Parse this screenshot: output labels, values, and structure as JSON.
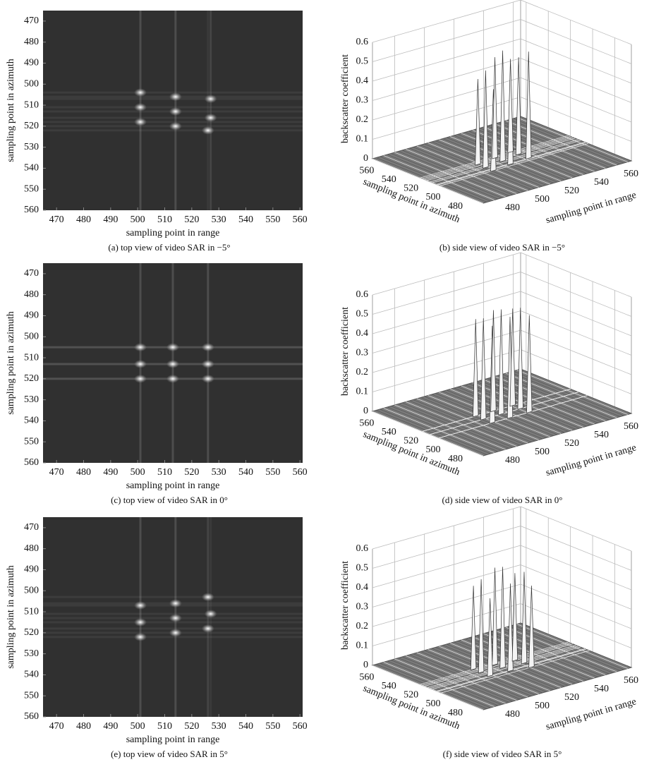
{
  "chart_data": [
    {
      "type": "scatter",
      "caption": "(a)  top view of video SAR in −5°",
      "xlabel": "sampling point in range",
      "ylabel": "sampling point in azimuth",
      "x": [
        501,
        514,
        527,
        501,
        514,
        527,
        501,
        514,
        526
      ],
      "y": [
        504,
        506,
        507,
        511,
        513,
        516,
        518,
        520,
        522
      ],
      "xlim": [
        465,
        561
      ],
      "ylim": [
        465,
        560
      ],
      "xticks": [
        470,
        480,
        490,
        500,
        510,
        520,
        530,
        540,
        550,
        560
      ],
      "yticks": [
        470,
        480,
        490,
        500,
        510,
        520,
        530,
        540,
        550,
        560
      ]
    },
    {
      "type": "surface3d",
      "caption": "(b)  side view of video SAR in −5°",
      "xlabel": "sampling point in range",
      "ylabel": "sampling point in azimuth",
      "zlabel": "backscatter coefficient",
      "x": [
        501,
        514,
        527,
        501,
        514,
        527,
        501,
        514,
        526
      ],
      "y": [
        504,
        506,
        507,
        511,
        513,
        516,
        518,
        520,
        522
      ],
      "z": [
        0.42,
        0.5,
        0.55,
        0.5,
        0.57,
        0.5,
        0.44,
        0.52,
        0.48
      ],
      "xlim": [
        465,
        565
      ],
      "ylim": [
        465,
        565
      ],
      "zlim": [
        0,
        0.6
      ],
      "xticks": [
        480,
        500,
        520,
        540,
        560
      ],
      "yticks": [
        480,
        500,
        520,
        540,
        560
      ],
      "zticks": [
        0,
        0.1,
        0.2,
        0.3,
        0.4,
        0.5,
        0.6
      ]
    },
    {
      "type": "scatter",
      "caption": "(c)  top view of video SAR in 0°",
      "xlabel": "sampling point in range",
      "ylabel": "sampling point in azimuth",
      "x": [
        501,
        513,
        526,
        501,
        513,
        526,
        501,
        513,
        526
      ],
      "y": [
        505,
        505,
        505,
        513,
        513,
        513,
        520,
        520,
        520
      ],
      "xlim": [
        465,
        561
      ],
      "ylim": [
        465,
        560
      ],
      "xticks": [
        470,
        480,
        490,
        500,
        510,
        520,
        530,
        540,
        550,
        560
      ],
      "yticks": [
        470,
        480,
        490,
        500,
        510,
        520,
        530,
        540,
        550,
        560
      ]
    },
    {
      "type": "surface3d",
      "caption": "(d)  side view of video SAR in 0°",
      "xlabel": "sampling point in range",
      "ylabel": "sampling point in azimuth",
      "zlabel": "backscatter coefficient",
      "x": [
        501,
        513,
        526,
        501,
        513,
        526,
        501,
        513,
        526
      ],
      "y": [
        505,
        505,
        505,
        513,
        513,
        513,
        520,
        520,
        520
      ],
      "z": [
        0.5,
        0.52,
        0.5,
        0.52,
        0.54,
        0.52,
        0.5,
        0.52,
        0.5
      ],
      "xlim": [
        465,
        565
      ],
      "ylim": [
        465,
        565
      ],
      "zlim": [
        0,
        0.6
      ],
      "xticks": [
        480,
        500,
        520,
        540,
        560
      ],
      "yticks": [
        480,
        500,
        520,
        540,
        560
      ],
      "zticks": [
        0,
        0.1,
        0.2,
        0.3,
        0.4,
        0.5,
        0.6
      ]
    },
    {
      "type": "scatter",
      "caption": "(e)  top view of video SAR in 5°",
      "xlabel": "sampling point in range",
      "ylabel": "sampling point in azimuth",
      "x": [
        501,
        514,
        526,
        501,
        514,
        527,
        501,
        514,
        526
      ],
      "y": [
        507,
        506,
        503,
        515,
        513,
        511,
        522,
        520,
        518
      ],
      "xlim": [
        465,
        561
      ],
      "ylim": [
        465,
        560
      ],
      "xticks": [
        470,
        480,
        490,
        500,
        510,
        520,
        530,
        540,
        550,
        560
      ],
      "yticks": [
        470,
        480,
        490,
        500,
        510,
        520,
        530,
        540,
        550,
        560
      ]
    },
    {
      "type": "surface3d",
      "caption": "(f)  side view of video SAR in 5°",
      "xlabel": "sampling point in range",
      "ylabel": "sampling point in azimuth",
      "zlabel": "backscatter coefficient",
      "x": [
        501,
        514,
        526,
        501,
        514,
        527,
        501,
        514,
        526
      ],
      "y": [
        507,
        506,
        503,
        515,
        513,
        511,
        522,
        520,
        518
      ],
      "z": [
        0.4,
        0.45,
        0.42,
        0.48,
        0.52,
        0.47,
        0.43,
        0.5,
        0.45
      ],
      "xlim": [
        465,
        565
      ],
      "ylim": [
        465,
        565
      ],
      "zlim": [
        0,
        0.6
      ],
      "xticks": [
        480,
        500,
        520,
        540,
        560
      ],
      "yticks": [
        480,
        500,
        520,
        540,
        560
      ],
      "zticks": [
        0,
        0.1,
        0.2,
        0.3,
        0.4,
        0.5,
        0.6
      ]
    }
  ]
}
